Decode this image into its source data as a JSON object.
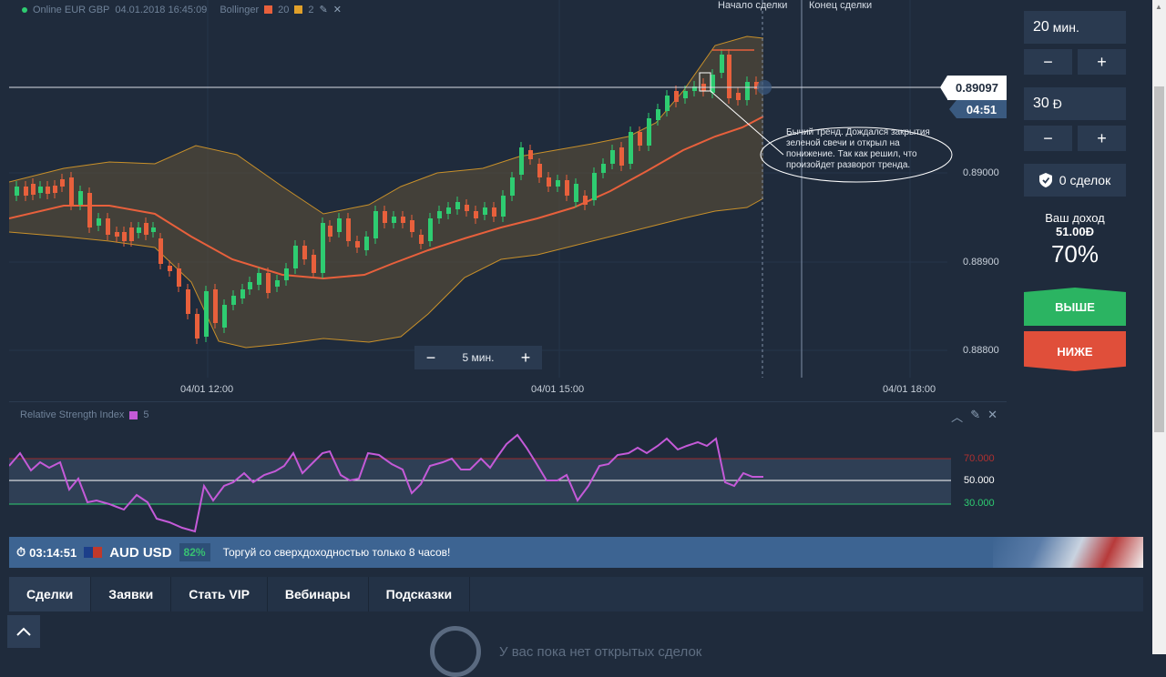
{
  "chart": {
    "legend": {
      "instrument": "Online EUR GBP",
      "datetime": "04.01.2018 16:45:09",
      "indicator": "Bollinger",
      "param1": "20",
      "param2": "2",
      "param1_color": "#e8603c",
      "param2_color": "#e0a02a"
    },
    "markers": {
      "start": "Начало сделки",
      "end": "Конец сделки"
    },
    "current_price": "0.89097",
    "countdown": "04:51",
    "y_ticks": [
      "0.89000",
      "0.88900",
      "0.88800"
    ],
    "x_ticks": [
      "04/01 12:00",
      "04/01 15:00",
      "04/01 18:00"
    ],
    "annotation": "Бычий тренд. Дождался закрытия зеленой свечи и открыл на понижение. Так как решил, что произойдет разворот тренда.",
    "zoom": {
      "minus": "−",
      "label": "5 мин.",
      "plus": "+"
    }
  },
  "rsi": {
    "title": "Relative Strength Index",
    "period": "5",
    "color": "#c45ad8",
    "ticks": [
      "70.000",
      "50.000",
      "30.000"
    ]
  },
  "trade": {
    "duration_value": "20",
    "duration_unit": "мин.",
    "amount_value": "30",
    "amount_unit": "Ð",
    "minus": "−",
    "plus": "+",
    "deals_label": "0 сделок",
    "income_label": "Ваш доход",
    "income_value": "51.00Ð",
    "payout": "70%",
    "up_label": "ВЫШЕ",
    "down_label": "НИЖЕ"
  },
  "promo": {
    "timer": "03:14:51",
    "pair": "AUD USD",
    "pct": "82%",
    "message": "Торгуй со сверхдоходностью только 8 часов!"
  },
  "tabs": [
    "Сделки",
    "Заявки",
    "Стать VIP",
    "Вебинары",
    "Подсказки"
  ],
  "empty_message": "У вас пока нет открытых сделок",
  "colors": {
    "up": "#2bb462",
    "down": "#e04f3a",
    "candle_up": "#2ecc71",
    "candle_down": "#e8603c",
    "band": "#c8902a",
    "middle": "#e8603c"
  }
}
